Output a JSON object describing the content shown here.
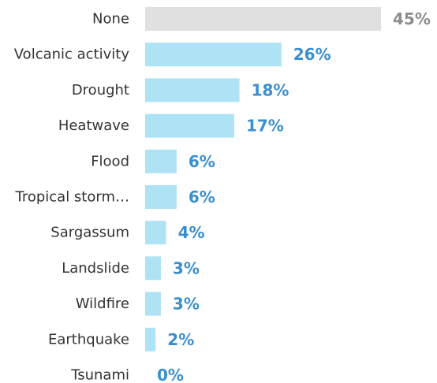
{
  "chart_data": {
    "type": "bar",
    "orientation": "horizontal",
    "categories": [
      "None",
      "Volcanic activity",
      "Drought",
      "Heatwave",
      "Flood",
      "Tropical storm…",
      "Sargassum",
      "Landslide",
      "Wildfire",
      "Earthquake",
      "Tsunami"
    ],
    "values": [
      45,
      26,
      18,
      17,
      6,
      6,
      4,
      3,
      3,
      2,
      0
    ],
    "value_labels": [
      "45%",
      "26%",
      "18%",
      "17%",
      "6%",
      "6%",
      "4%",
      "3%",
      "3%",
      "2%",
      "0%"
    ],
    "unit": "%",
    "xlim": [
      0,
      45
    ],
    "grid": false,
    "legend": "none",
    "colors": {
      "highlight_bar": "#e0e0e0",
      "highlight_label": "#8c8c8c",
      "bar": "#aee3f5",
      "label": "#3a8fcf"
    },
    "highlight_index": 0
  }
}
